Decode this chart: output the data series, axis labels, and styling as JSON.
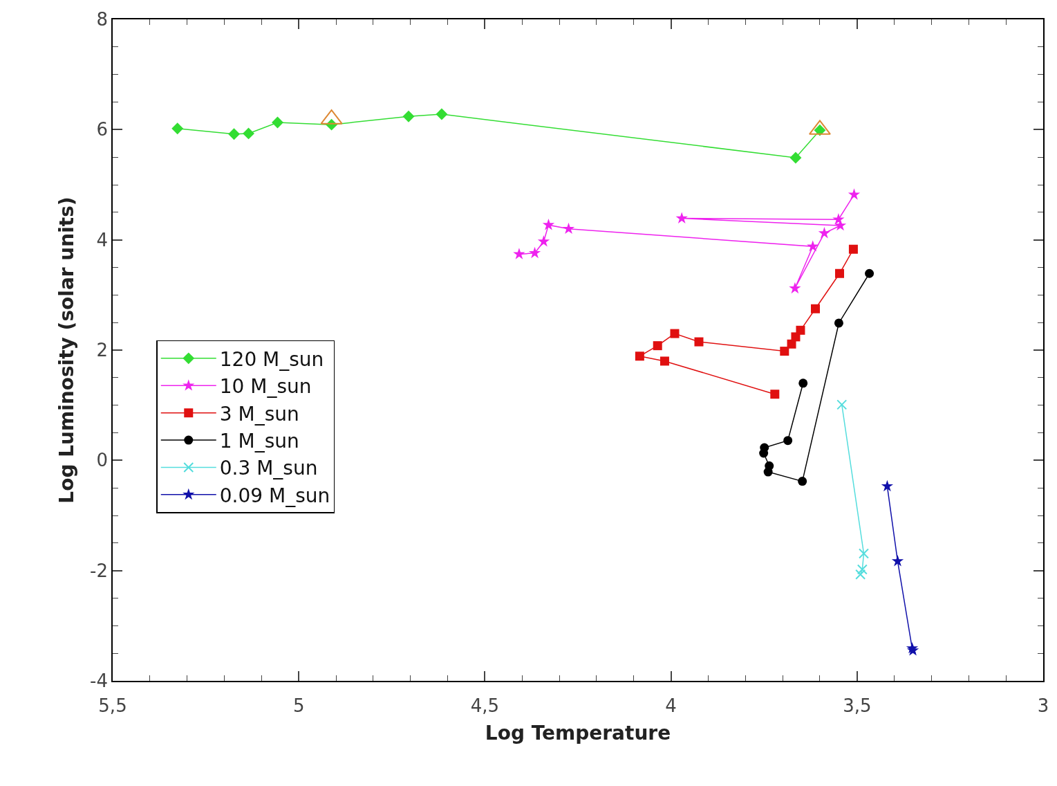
{
  "chart_data": {
    "type": "line",
    "xlabel": "Log Temperature",
    "ylabel": "Log Luminosity (solar units)",
    "xlim": [
      5.5,
      3
    ],
    "ylim": [
      -4,
      8
    ],
    "xticks": [
      {
        "value": 5.5,
        "label": "5,5"
      },
      5,
      {
        "value": 4.5,
        "label": "4,5"
      },
      4,
      {
        "value": 3.5,
        "label": "3,5"
      },
      3,
      {
        "value": 5.4,
        "label": null
      },
      {
        "value": 5.3,
        "label": null
      },
      {
        "value": 5.2,
        "label": null
      },
      {
        "value": 5.1,
        "label": null
      },
      {
        "value": 4.9,
        "label": null
      },
      {
        "value": 4.8,
        "label": null
      },
      {
        "value": 4.7,
        "label": null
      },
      {
        "value": 4.6,
        "label": null
      },
      {
        "value": 4.4,
        "label": null
      },
      {
        "value": 4.3,
        "label": null
      },
      {
        "value": 4.2,
        "label": null
      },
      {
        "value": 4.1,
        "label": null
      },
      {
        "value": 3.9,
        "label": null
      },
      {
        "value": 3.8,
        "label": null
      },
      {
        "value": 3.7,
        "label": null
      },
      {
        "value": 3.6,
        "label": null
      },
      {
        "value": 3.4,
        "label": null
      },
      {
        "value": 3.3,
        "label": null
      },
      {
        "value": 3.2,
        "label": null
      },
      {
        "value": 3.1,
        "label": null
      }
    ],
    "yticks": [
      -4,
      -2,
      0,
      2,
      4,
      6,
      8,
      {
        "value": -3.5,
        "label": null
      },
      {
        "value": -3,
        "label": null
      },
      {
        "value": -2.5,
        "label": null
      },
      {
        "value": -1.5,
        "label": null
      },
      {
        "value": -1,
        "label": null
      },
      {
        "value": -0.5,
        "label": null
      },
      {
        "value": 0.5,
        "label": null
      },
      {
        "value": 1,
        "label": null
      },
      {
        "value": 1.5,
        "label": null
      },
      {
        "value": 2.5,
        "label": null
      },
      {
        "value": 3,
        "label": null
      },
      {
        "value": 3.5,
        "label": null
      },
      {
        "value": 4.5,
        "label": null
      },
      {
        "value": 5,
        "label": null
      },
      {
        "value": 5.5,
        "label": null
      },
      {
        "value": 6.5,
        "label": null
      },
      {
        "value": 7,
        "label": null
      },
      {
        "value": 7.5,
        "label": null
      }
    ],
    "legend": "left",
    "line_style": "solid",
    "series": [
      {
        "name": "120 M_sun",
        "color": "#33dd33",
        "marker": "diamond",
        "x": [
          5.326,
          5.174,
          5.135,
          5.057,
          4.912,
          4.705,
          4.616,
          3.665,
          3.6
        ],
        "values": [
          6.02,
          5.92,
          5.93,
          6.13,
          6.09,
          6.24,
          6.28,
          5.49,
          5.99
        ]
      },
      {
        "name": "10 M_sun",
        "color": "#ee22ee",
        "marker": "star",
        "x": [
          4.408,
          4.366,
          4.342,
          4.329,
          4.275,
          3.619,
          3.667,
          3.588,
          3.545,
          3.971,
          3.55,
          3.508
        ],
        "values": [
          3.74,
          3.76,
          3.97,
          4.27,
          4.2,
          3.88,
          3.12,
          4.12,
          4.26,
          4.39,
          4.37,
          4.82
        ]
      },
      {
        "name": "3 M_sun",
        "color": "#e01010",
        "marker": "square",
        "x": [
          3.721,
          4.017,
          4.084,
          4.036,
          3.99,
          3.925,
          3.695,
          3.676,
          3.665,
          3.652,
          3.612,
          3.547,
          3.51
        ],
        "values": [
          1.2,
          1.8,
          1.89,
          2.08,
          2.3,
          2.15,
          1.98,
          2.11,
          2.24,
          2.36,
          2.75,
          3.39,
          3.83
        ]
      },
      {
        "name": "1 M_sun",
        "color": "#000000",
        "marker": "circle",
        "x": [
          3.645,
          3.686,
          3.749,
          3.751,
          3.736,
          3.739,
          3.647,
          3.549,
          3.467
        ],
        "values": [
          1.4,
          0.36,
          0.23,
          0.13,
          -0.1,
          -0.21,
          -0.38,
          2.49,
          3.39
        ]
      },
      {
        "name": "0.3 M_sun",
        "color": "#55dddd",
        "marker": "cross",
        "x": [
          3.541,
          3.482,
          3.486,
          3.491
        ],
        "values": [
          1.01,
          -1.69,
          -1.98,
          -2.07
        ]
      },
      {
        "name": "0.09 M_sun",
        "color": "#1010aa",
        "marker": "star",
        "x": [
          3.419,
          3.391,
          3.352,
          3.35
        ],
        "values": [
          -0.47,
          -1.83,
          -3.41,
          -3.45
        ]
      },
      {
        "type": "scatter",
        "color": "#dd8833",
        "marker": "triangle",
        "x": [
          4.912,
          3.6
        ],
        "values": [
          6.19,
          6.0
        ]
      }
    ]
  }
}
